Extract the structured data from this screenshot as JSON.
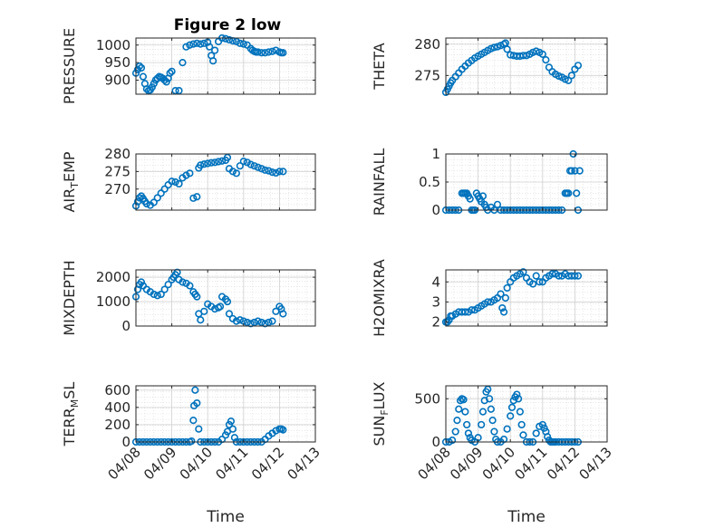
{
  "figure": {
    "title": "Figure 2 low",
    "marker_color": "#0072BD"
  },
  "chart_data": [
    {
      "type": "scatter",
      "title": "Figure 2 low",
      "xlabel": "",
      "ylabel": "PRESSURE",
      "ylim": [
        860,
        1020
      ],
      "yticks": [
        900,
        950,
        1000
      ],
      "xlim": [
        0,
        5
      ],
      "xtick_labels": [],
      "grid": true,
      "x": [
        0.0,
        0.05,
        0.1,
        0.15,
        0.2,
        0.25,
        0.3,
        0.35,
        0.4,
        0.45,
        0.5,
        0.55,
        0.6,
        0.65,
        0.7,
        0.75,
        0.8,
        0.85,
        0.9,
        0.95,
        1.0,
        1.1,
        1.2,
        1.3,
        1.4,
        1.5,
        1.6,
        1.7,
        1.8,
        1.9,
        2.0,
        2.05,
        2.1,
        2.15,
        2.2,
        2.3,
        2.4,
        2.5,
        2.6,
        2.7,
        2.8,
        2.9,
        3.0,
        3.1,
        3.2,
        3.25,
        3.3,
        3.35,
        3.4,
        3.5,
        3.6,
        3.7,
        3.8,
        3.9,
        4.0,
        4.05,
        4.1
      ],
      "y": [
        920,
        930,
        940,
        935,
        910,
        890,
        875,
        870,
        872,
        880,
        890,
        900,
        905,
        910,
        908,
        905,
        900,
        895,
        905,
        920,
        925,
        870,
        870,
        950,
        995,
        1000,
        1003,
        1005,
        1003,
        1005,
        1008,
        995,
        970,
        955,
        985,
        1010,
        1020,
        1018,
        1015,
        1012,
        1010,
        1005,
        1003,
        1000,
        990,
        985,
        982,
        980,
        980,
        978,
        978,
        980,
        982,
        985,
        980,
        978,
        978
      ]
    },
    {
      "type": "scatter",
      "xlabel": "",
      "ylabel": "THETA",
      "ylim": [
        272,
        281
      ],
      "yticks": [
        275,
        280
      ],
      "xlim": [
        0,
        5
      ],
      "xtick_labels": [],
      "grid": true,
      "x": [
        0.0,
        0.05,
        0.1,
        0.15,
        0.2,
        0.3,
        0.4,
        0.5,
        0.6,
        0.7,
        0.8,
        0.9,
        1.0,
        1.1,
        1.2,
        1.3,
        1.4,
        1.5,
        1.6,
        1.7,
        1.8,
        1.85,
        1.9,
        2.0,
        2.1,
        2.2,
        2.3,
        2.4,
        2.5,
        2.6,
        2.7,
        2.8,
        2.9,
        3.0,
        3.1,
        3.2,
        3.3,
        3.4,
        3.5,
        3.6,
        3.7,
        3.8,
        3.9,
        4.0,
        4.1
      ],
      "y": [
        272.3,
        272.8,
        273.3,
        273.8,
        274.2,
        274.8,
        275.4,
        276.0,
        276.5,
        277.0,
        277.4,
        277.8,
        278.1,
        278.4,
        278.7,
        279.0,
        279.3,
        279.5,
        279.6,
        279.8,
        280.0,
        280.2,
        279.2,
        278.3,
        278.2,
        278.1,
        278.1,
        278.2,
        278.2,
        278.4,
        278.7,
        278.9,
        278.7,
        278.4,
        277.5,
        276.3,
        275.6,
        275.2,
        274.9,
        274.7,
        274.4,
        274.2,
        275.0,
        276.0,
        276.6
      ]
    },
    {
      "type": "scatter",
      "xlabel": "",
      "ylabel": "AIR_TEMP",
      "ylim": [
        264,
        280
      ],
      "yticks": [
        270,
        275,
        280
      ],
      "xlim": [
        0,
        5
      ],
      "xtick_labels": [],
      "grid": true,
      "x": [
        0.0,
        0.05,
        0.1,
        0.15,
        0.2,
        0.25,
        0.3,
        0.4,
        0.5,
        0.6,
        0.7,
        0.8,
        0.9,
        1.0,
        1.1,
        1.2,
        1.3,
        1.4,
        1.5,
        1.6,
        1.7,
        1.75,
        1.8,
        1.9,
        2.0,
        2.1,
        2.2,
        2.3,
        2.4,
        2.5,
        2.55,
        2.6,
        2.7,
        2.8,
        2.9,
        3.0,
        3.1,
        3.2,
        3.3,
        3.4,
        3.5,
        3.6,
        3.7,
        3.8,
        3.9,
        4.0,
        4.1
      ],
      "y": [
        265.2,
        266.4,
        267.5,
        268.0,
        267.3,
        266.5,
        265.8,
        265.4,
        266.2,
        267.5,
        268.8,
        270.0,
        271.2,
        272.2,
        272.0,
        271.5,
        273.2,
        273.9,
        274.5,
        267.4,
        267.8,
        276.0,
        276.8,
        277.1,
        277.3,
        277.5,
        277.6,
        277.8,
        278.0,
        278.2,
        279.0,
        275.8,
        275.0,
        274.5,
        276.6,
        277.9,
        277.6,
        277.0,
        276.6,
        276.2,
        275.8,
        275.4,
        275.2,
        274.8,
        274.6,
        275.0,
        275.0
      ]
    },
    {
      "type": "scatter",
      "xlabel": "",
      "ylabel": "RAINFALL",
      "ylim": [
        0,
        1
      ],
      "yticks": [
        0,
        0.5,
        1
      ],
      "xlim": [
        0,
        5
      ],
      "xtick_labels": [],
      "grid": true,
      "x": [
        0.0,
        0.1,
        0.2,
        0.3,
        0.4,
        0.5,
        0.55,
        0.6,
        0.65,
        0.7,
        0.75,
        0.8,
        0.85,
        0.9,
        0.95,
        1.0,
        1.05,
        1.1,
        1.15,
        1.2,
        1.25,
        1.3,
        1.4,
        1.5,
        1.6,
        1.7,
        1.8,
        1.9,
        2.0,
        2.1,
        2.2,
        2.3,
        2.4,
        2.5,
        2.6,
        2.7,
        2.8,
        2.9,
        3.0,
        3.1,
        3.2,
        3.3,
        3.4,
        3.5,
        3.6,
        3.7,
        3.75,
        3.8,
        3.85,
        3.9,
        3.95,
        4.0,
        4.05,
        4.1,
        4.15
      ],
      "y": [
        0,
        0,
        0,
        0,
        0,
        0.3,
        0.3,
        0.3,
        0.3,
        0.25,
        0.2,
        0,
        0,
        0,
        0.3,
        0.25,
        0.2,
        0.15,
        0.25,
        0.1,
        0.05,
        0,
        0.05,
        0,
        0.1,
        0,
        0,
        0,
        0,
        0,
        0,
        0,
        0,
        0,
        0,
        0,
        0,
        0,
        0,
        0,
        0,
        0,
        0,
        0,
        0,
        0.3,
        0.3,
        0.3,
        0.7,
        0.7,
        1.0,
        0.7,
        0.3,
        0,
        0.7
      ]
    },
    {
      "type": "scatter",
      "xlabel": "",
      "ylabel": "MIXDEPTH",
      "ylim": [
        0,
        2300
      ],
      "yticks": [
        0,
        1000,
        2000
      ],
      "xlim": [
        0,
        5
      ],
      "xtick_labels": [],
      "grid": true,
      "x": [
        0.0,
        0.05,
        0.1,
        0.15,
        0.2,
        0.3,
        0.4,
        0.5,
        0.6,
        0.7,
        0.8,
        0.9,
        1.0,
        1.05,
        1.1,
        1.15,
        1.2,
        1.3,
        1.4,
        1.5,
        1.6,
        1.65,
        1.7,
        1.75,
        1.8,
        1.9,
        2.0,
        2.1,
        2.2,
        2.3,
        2.35,
        2.4,
        2.5,
        2.55,
        2.6,
        2.7,
        2.8,
        2.9,
        3.0,
        3.1,
        3.2,
        3.3,
        3.4,
        3.5,
        3.6,
        3.7,
        3.8,
        3.9,
        4.0,
        4.05,
        4.1
      ],
      "y": [
        1200,
        1500,
        1700,
        1800,
        1650,
        1500,
        1400,
        1300,
        1250,
        1300,
        1500,
        1700,
        1900,
        2000,
        2100,
        2200,
        1900,
        1800,
        1750,
        1650,
        1400,
        1300,
        1200,
        500,
        250,
        600,
        900,
        800,
        700,
        750,
        800,
        1200,
        1100,
        1000,
        500,
        300,
        200,
        250,
        200,
        150,
        100,
        150,
        200,
        150,
        100,
        150,
        200,
        600,
        800,
        700,
        500
      ]
    },
    {
      "type": "scatter",
      "xlabel": "",
      "ylabel": "H2OMIXRA",
      "ylim": [
        1.8,
        4.6
      ],
      "yticks": [
        2,
        3,
        4
      ],
      "xlim": [
        0,
        5
      ],
      "xtick_labels": [],
      "grid": true,
      "x": [
        0.0,
        0.05,
        0.1,
        0.15,
        0.2,
        0.3,
        0.4,
        0.5,
        0.6,
        0.7,
        0.8,
        0.9,
        1.0,
        1.1,
        1.2,
        1.3,
        1.4,
        1.5,
        1.6,
        1.7,
        1.75,
        1.8,
        1.85,
        1.9,
        2.0,
        2.1,
        2.2,
        2.3,
        2.4,
        2.5,
        2.6,
        2.7,
        2.8,
        2.9,
        3.0,
        3.1,
        3.2,
        3.3,
        3.4,
        3.5,
        3.6,
        3.7,
        3.8,
        3.9,
        4.0,
        4.1
      ],
      "y": [
        2.0,
        2.0,
        2.1,
        2.3,
        2.3,
        2.4,
        2.5,
        2.5,
        2.5,
        2.5,
        2.6,
        2.6,
        2.7,
        2.8,
        2.9,
        3.0,
        3.0,
        3.1,
        3.2,
        3.4,
        2.7,
        2.5,
        3.2,
        3.7,
        4.0,
        4.2,
        4.3,
        4.4,
        4.5,
        4.2,
        4.0,
        3.9,
        4.3,
        4.0,
        4.0,
        4.2,
        4.3,
        4.4,
        4.4,
        4.3,
        4.3,
        4.4,
        4.3,
        4.3,
        4.3,
        4.3
      ]
    },
    {
      "type": "scatter",
      "xlabel": "Time",
      "ylabel": "TERR_MSL",
      "ylim": [
        0,
        650
      ],
      "yticks": [
        0,
        200,
        400,
        600
      ],
      "xlim": [
        0,
        5
      ],
      "xtick_labels": [
        "04/08",
        "04/09",
        "04/10",
        "04/11",
        "04/12",
        "04/13"
      ],
      "grid": true,
      "x": [
        0.0,
        0.1,
        0.2,
        0.3,
        0.4,
        0.5,
        0.6,
        0.7,
        0.8,
        0.9,
        1.0,
        1.1,
        1.2,
        1.3,
        1.4,
        1.5,
        1.55,
        1.6,
        1.62,
        1.65,
        1.7,
        1.75,
        1.8,
        1.9,
        2.0,
        2.1,
        2.2,
        2.3,
        2.4,
        2.5,
        2.55,
        2.6,
        2.65,
        2.7,
        2.75,
        2.8,
        2.9,
        3.0,
        3.1,
        3.2,
        3.3,
        3.4,
        3.5,
        3.6,
        3.7,
        3.8,
        3.9,
        4.0,
        4.05,
        4.1
      ],
      "y": [
        0,
        0,
        0,
        0,
        0,
        0,
        0,
        0,
        0,
        0,
        0,
        0,
        0,
        0,
        0,
        0,
        10,
        250,
        420,
        600,
        450,
        150,
        0,
        0,
        0,
        0,
        0,
        0,
        30,
        80,
        120,
        200,
        240,
        150,
        50,
        0,
        0,
        0,
        0,
        0,
        0,
        0,
        0,
        30,
        70,
        100,
        130,
        150,
        150,
        140
      ]
    },
    {
      "type": "scatter",
      "xlabel": "Time",
      "ylabel": "SUN_FLUX",
      "ylim": [
        0,
        650
      ],
      "yticks": [
        0,
        500
      ],
      "xlim": [
        0,
        5
      ],
      "xtick_labels": [
        "04/08",
        "04/09",
        "04/10",
        "04/11",
        "04/12",
        "04/13"
      ],
      "grid": true,
      "x": [
        0.0,
        0.1,
        0.2,
        0.3,
        0.35,
        0.4,
        0.45,
        0.5,
        0.55,
        0.6,
        0.65,
        0.7,
        0.75,
        0.8,
        0.9,
        1.0,
        1.1,
        1.15,
        1.2,
        1.25,
        1.3,
        1.35,
        1.4,
        1.45,
        1.5,
        1.55,
        1.6,
        1.7,
        1.8,
        1.9,
        2.0,
        2.05,
        2.1,
        2.15,
        2.2,
        2.25,
        2.3,
        2.35,
        2.4,
        2.5,
        2.6,
        2.7,
        2.8,
        2.9,
        3.0,
        3.05,
        3.1,
        3.15,
        3.2,
        3.25,
        3.3,
        3.35,
        3.4,
        3.5,
        3.6,
        3.7,
        3.8,
        3.9,
        4.0,
        4.1
      ],
      "y": [
        0,
        0,
        20,
        120,
        250,
        380,
        480,
        500,
        490,
        350,
        200,
        100,
        50,
        20,
        0,
        50,
        200,
        350,
        480,
        580,
        610,
        500,
        380,
        250,
        120,
        30,
        0,
        0,
        30,
        150,
        300,
        400,
        480,
        520,
        550,
        500,
        350,
        200,
        80,
        0,
        0,
        0,
        100,
        180,
        200,
        160,
        120,
        60,
        20,
        0,
        0,
        0,
        0,
        0,
        0,
        0,
        0,
        0,
        0,
        0
      ]
    }
  ]
}
